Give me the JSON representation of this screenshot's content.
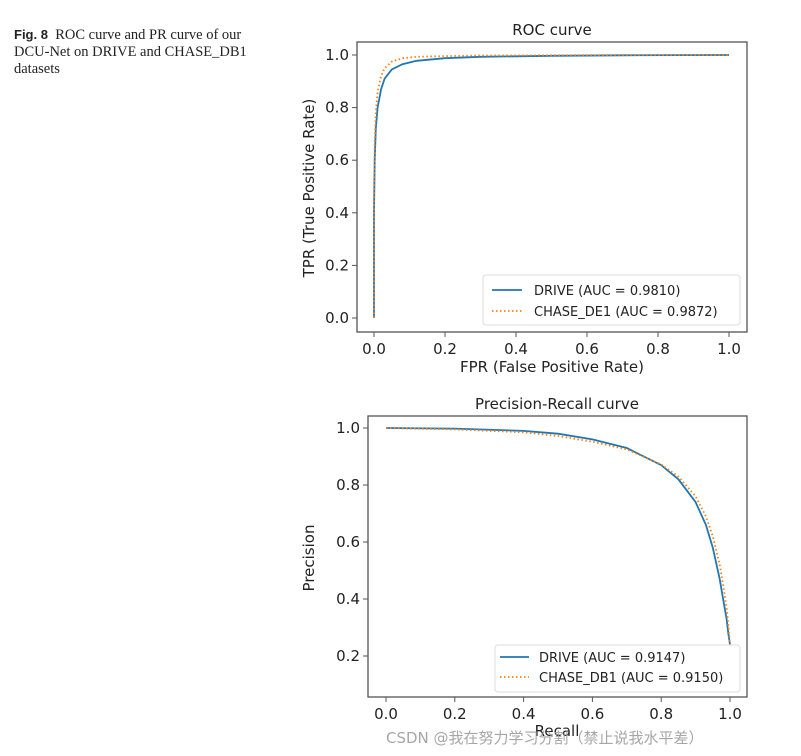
{
  "caption": {
    "label": "Fig. 8",
    "text": "ROC curve and PR curve of our DCU-Net on DRIVE and CHASE_DB1 datasets"
  },
  "watermark": "CSDN @我在努力学习分割（禁止说我水平差）",
  "colors": {
    "drive": "#1f77b4",
    "chase": "#ff7f0e",
    "axes": "#555555",
    "text": "#222222"
  },
  "chart_data": [
    {
      "type": "line",
      "title": "ROC curve",
      "xlabel": "FPR (False Positive Rate)",
      "ylabel": "TPR (True Positive Rate)",
      "xlim": [
        -0.05,
        1.05
      ],
      "ylim": [
        -0.05,
        1.05
      ],
      "xticks": [
        "0.0",
        "0.2",
        "0.4",
        "0.6",
        "0.8",
        "1.0"
      ],
      "yticks": [
        "0.0",
        "0.2",
        "0.4",
        "0.6",
        "0.8",
        "1.0"
      ],
      "grid": false,
      "legend_position": "lower right",
      "series": [
        {
          "name": "DRIVE (AUC = 0.9810)",
          "style": "solid",
          "color": "#1f77b4",
          "x": [
            0.0,
            0.0,
            0.002,
            0.005,
            0.01,
            0.02,
            0.03,
            0.05,
            0.08,
            0.12,
            0.2,
            0.3,
            0.5,
            0.7,
            1.0
          ],
          "y": [
            0.0,
            0.4,
            0.6,
            0.72,
            0.8,
            0.87,
            0.91,
            0.945,
            0.965,
            0.978,
            0.988,
            0.993,
            0.997,
            0.999,
            1.0
          ]
        },
        {
          "name": "CHASE_DE1 (AUC = 0.9872)",
          "style": "dotted",
          "color": "#ff7f0e",
          "x": [
            0.0,
            0.0,
            0.002,
            0.005,
            0.01,
            0.02,
            0.03,
            0.05,
            0.08,
            0.12,
            0.2,
            0.3,
            0.5,
            0.7,
            1.0
          ],
          "y": [
            0.0,
            0.45,
            0.66,
            0.78,
            0.86,
            0.92,
            0.95,
            0.975,
            0.988,
            0.993,
            0.996,
            0.998,
            0.999,
            1.0,
            1.0
          ]
        }
      ]
    },
    {
      "type": "line",
      "title": "Precision-Recall curve",
      "xlabel": "Recall",
      "ylabel": "Precision",
      "xlim": [
        -0.05,
        1.05
      ],
      "ylim": [
        0.06,
        1.04
      ],
      "xticks": [
        "0.0",
        "0.2",
        "0.4",
        "0.6",
        "0.8",
        "1.0"
      ],
      "yticks": [
        "0.2",
        "0.4",
        "0.6",
        "0.8",
        "1.0"
      ],
      "grid": false,
      "legend_position": "lower right",
      "series": [
        {
          "name": "DRIVE (AUC = 0.9147)",
          "style": "solid",
          "color": "#1f77b4",
          "x": [
            0.0,
            0.2,
            0.4,
            0.5,
            0.6,
            0.7,
            0.8,
            0.85,
            0.9,
            0.93,
            0.95,
            0.97,
            0.98,
            0.99,
            0.995,
            1.0
          ],
          "y": [
            1.0,
            0.998,
            0.99,
            0.98,
            0.96,
            0.93,
            0.87,
            0.82,
            0.74,
            0.66,
            0.58,
            0.47,
            0.4,
            0.33,
            0.28,
            0.24
          ]
        },
        {
          "name": "CHASE_DB1 (AUC = 0.9150)",
          "style": "dotted",
          "color": "#ff7f0e",
          "x": [
            0.0,
            0.2,
            0.4,
            0.5,
            0.6,
            0.7,
            0.8,
            0.85,
            0.9,
            0.93,
            0.95,
            0.97,
            0.98,
            0.99,
            0.995,
            1.0
          ],
          "y": [
            1.0,
            0.995,
            0.985,
            0.972,
            0.952,
            0.925,
            0.872,
            0.83,
            0.76,
            0.69,
            0.62,
            0.52,
            0.45,
            0.37,
            0.31,
            0.24
          ]
        }
      ]
    }
  ]
}
